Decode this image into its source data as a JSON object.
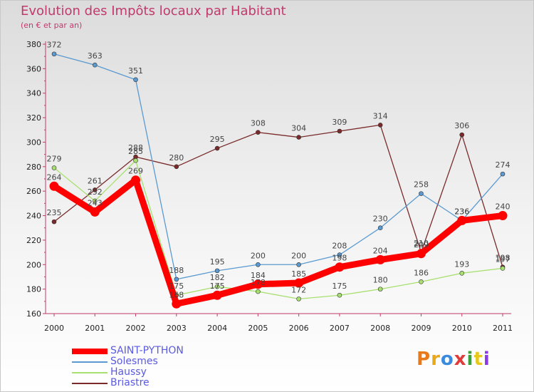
{
  "title": "Evolution des Impôts locaux par Habitant",
  "subtitle": "(en € et par an)",
  "logo": {
    "text": "Proxiti",
    "colors": [
      "#e87a1c",
      "#e8a81c",
      "#3a8ae0",
      "#e03a3a",
      "#3aa03a",
      "#e8c81c",
      "#8a3ae0"
    ]
  },
  "chart_data": {
    "type": "line",
    "title": "Evolution des Impôts locaux par Habitant",
    "subtitle": "(en € et par an)",
    "categories": [
      "2000",
      "2001",
      "2002",
      "2003",
      "2004",
      "2005",
      "2006",
      "2007",
      "2008",
      "2009",
      "2010",
      "2011"
    ],
    "ylim": [
      160,
      380
    ],
    "yticks": [
      160,
      180,
      200,
      220,
      240,
      260,
      280,
      300,
      320,
      340,
      360,
      380
    ],
    "grid": false,
    "legend_position": "bottom-left",
    "series": [
      {
        "name": "Briastre",
        "color": "#7a2a2a",
        "values": [
          235,
          261,
          288,
          280,
          295,
          308,
          304,
          309,
          314,
          210,
          306,
          198
        ]
      },
      {
        "name": "Haussy",
        "color": "#a8e070",
        "values": [
          279,
          252,
          285,
          175,
          182,
          178,
          172,
          175,
          180,
          186,
          193,
          197
        ]
      },
      {
        "name": "Solesmes",
        "color": "#5a9ad0",
        "values": [
          372,
          363,
          351,
          188,
          195,
          200,
          200,
          208,
          230,
          258,
          236,
          274
        ]
      },
      {
        "name": "SAINT-PYTHON",
        "color": "#ff0000",
        "values": [
          264,
          243,
          269,
          168,
          175,
          184,
          185,
          198,
          204,
          209,
          236,
          240
        ]
      }
    ],
    "legend_order": [
      "SAINT-PYTHON",
      "Solesmes",
      "Haussy",
      "Briastre"
    ]
  }
}
